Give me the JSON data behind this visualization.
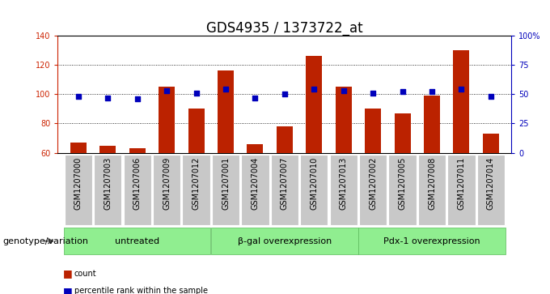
{
  "title": "GDS4935 / 1373722_at",
  "samples": [
    "GSM1207000",
    "GSM1207003",
    "GSM1207006",
    "GSM1207009",
    "GSM1207012",
    "GSM1207001",
    "GSM1207004",
    "GSM1207007",
    "GSM1207010",
    "GSM1207013",
    "GSM1207002",
    "GSM1207005",
    "GSM1207008",
    "GSM1207011",
    "GSM1207014"
  ],
  "counts": [
    67,
    65,
    63,
    105,
    90,
    116,
    66,
    78,
    126,
    105,
    90,
    87,
    99,
    130,
    73
  ],
  "percentiles": [
    48,
    47,
    46,
    53,
    51,
    54,
    47,
    50,
    54,
    53,
    51,
    52,
    52,
    54,
    48
  ],
  "groups": [
    {
      "label": "untreated",
      "start": 0,
      "end": 5
    },
    {
      "label": "β-gal overexpression",
      "start": 5,
      "end": 10
    },
    {
      "label": "Pdx-1 overexpression",
      "start": 10,
      "end": 15
    }
  ],
  "bar_color": "#bb2200",
  "dot_color": "#0000bb",
  "bar_width": 0.55,
  "ylim_left": [
    60,
    140
  ],
  "ylim_right": [
    0,
    100
  ],
  "yticks_left": [
    60,
    80,
    100,
    120,
    140
  ],
  "yticks_left_labels": [
    "60",
    "80",
    "100",
    "120",
    "140"
  ],
  "yticks_right": [
    0,
    25,
    50,
    75,
    100
  ],
  "yticks_right_labels": [
    "0",
    "25",
    "50",
    "75",
    "100%"
  ],
  "ylabel_left_color": "#cc2200",
  "ylabel_right_color": "#0000cc",
  "bg_label": "#c8c8c8",
  "group_color": "#90ee90",
  "group_color_dark": "#5aba5a",
  "genotype_label": "genotype/variation",
  "legend_count": "count",
  "legend_percentile": "percentile rank within the sample",
  "title_fontsize": 12,
  "tick_fontsize": 7,
  "label_fontsize": 8,
  "genotype_fontsize": 8
}
